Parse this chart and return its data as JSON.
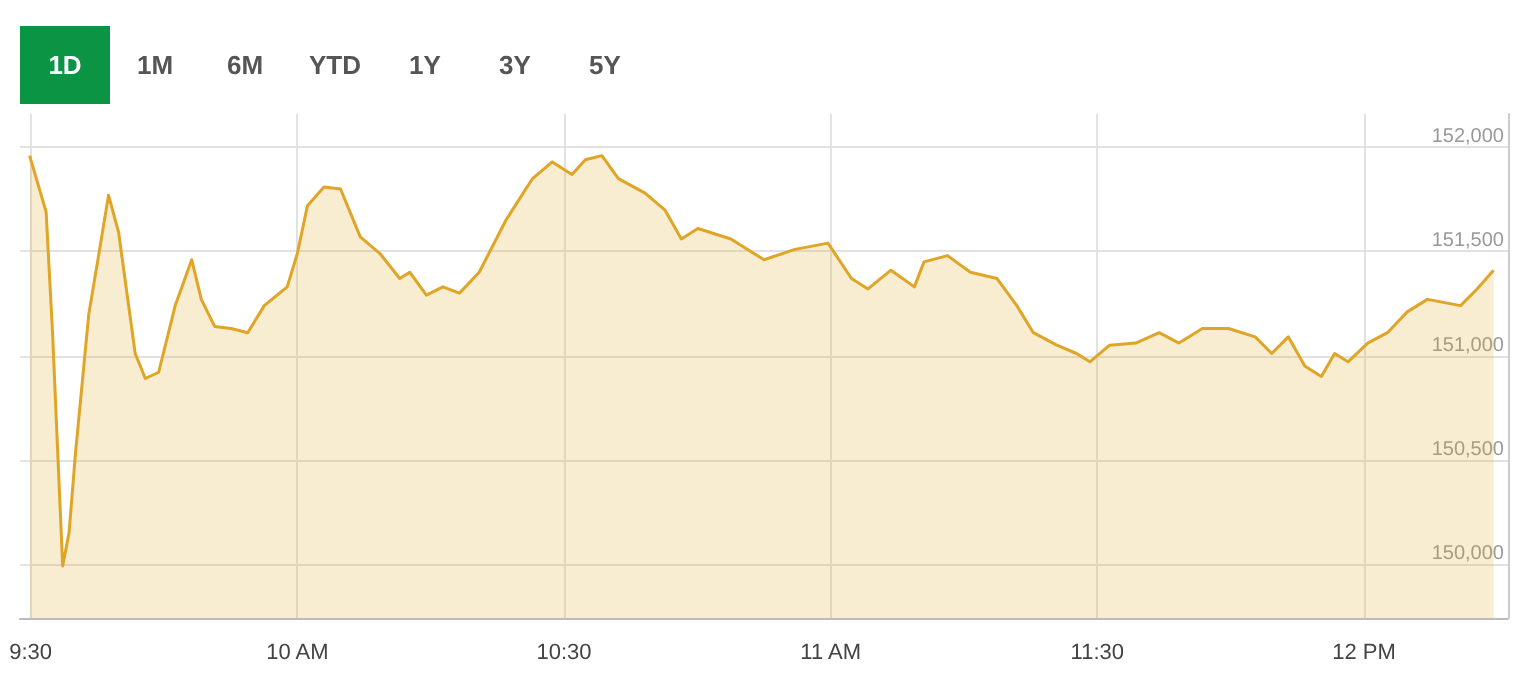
{
  "chart_data": {
    "type": "area",
    "annotations": [
      "1D",
      "1M",
      "6M",
      "YTD",
      "1Y",
      "3Y",
      "5Y"
    ],
    "x": [
      9.498,
      9.529,
      9.541,
      9.56,
      9.572,
      9.584,
      9.609,
      9.628,
      9.646,
      9.665,
      9.696,
      9.715,
      9.74,
      9.771,
      9.802,
      9.82,
      9.845,
      9.876,
      9.907,
      9.938,
      9.981,
      10.0,
      10.019,
      10.05,
      10.081,
      10.118,
      10.155,
      10.192,
      10.211,
      10.242,
      10.273,
      10.304,
      10.341,
      10.391,
      10.441,
      10.478,
      10.515,
      10.54,
      10.571,
      10.602,
      10.652,
      10.689,
      10.72,
      10.751,
      10.813,
      10.875,
      10.933,
      10.995,
      11.039,
      11.07,
      11.113,
      11.157,
      11.175,
      11.219,
      11.262,
      11.312,
      11.349,
      11.38,
      11.424,
      11.461,
      11.486,
      11.523,
      11.572,
      11.616,
      11.653,
      11.697,
      11.746,
      11.796,
      11.827,
      11.858,
      11.889,
      11.92,
      11.945,
      11.97,
      12.007,
      12.044,
      12.081,
      12.119,
      12.181,
      12.212,
      12.243
    ],
    "series": [
      {
        "color": "#e0a526",
        "values": [
          151960,
          151690,
          151110,
          149990,
          150150,
          150530,
          151200,
          151490,
          151770,
          151590,
          151010,
          150890,
          150920,
          151240,
          151460,
          151270,
          151140,
          151130,
          151110,
          151240,
          151330,
          151490,
          151720,
          151810,
          151800,
          151570,
          151490,
          151370,
          151400,
          151290,
          151330,
          151300,
          151400,
          151650,
          151850,
          151930,
          151870,
          151940,
          151960,
          151850,
          151780,
          151700,
          151560,
          151610,
          151560,
          151460,
          151510,
          151540,
          151370,
          151320,
          151410,
          151330,
          151450,
          151480,
          151400,
          151370,
          151240,
          151110,
          151050,
          151010,
          150970,
          151050,
          151060,
          151110,
          151060,
          151130,
          151130,
          151090,
          151010,
          151090,
          150950,
          150900,
          151010,
          150970,
          151060,
          151110,
          151210,
          151270,
          151240,
          151320,
          151410
        ]
      }
    ],
    "xlim": [
      9.48,
      12.27
    ],
    "xticks": [
      {
        "value": 9.5,
        "label": "9:30"
      },
      {
        "value": 10,
        "label": "10 AM"
      },
      {
        "value": 10.5,
        "label": "10:30"
      },
      {
        "value": 11,
        "label": "11 AM"
      },
      {
        "value": 11.5,
        "label": "11:30"
      },
      {
        "value": 12,
        "label": "12 PM"
      }
    ],
    "ylim": [
      149740,
      152160
    ],
    "yticks": [
      {
        "value": 150000,
        "label": "150,000"
      },
      {
        "value": 150500,
        "label": "150,500"
      },
      {
        "value": 151000,
        "label": "151,000"
      },
      {
        "value": 151500,
        "label": "151,500"
      },
      {
        "value": 152000,
        "label": "152,000"
      }
    ],
    "grid": true
  }
}
